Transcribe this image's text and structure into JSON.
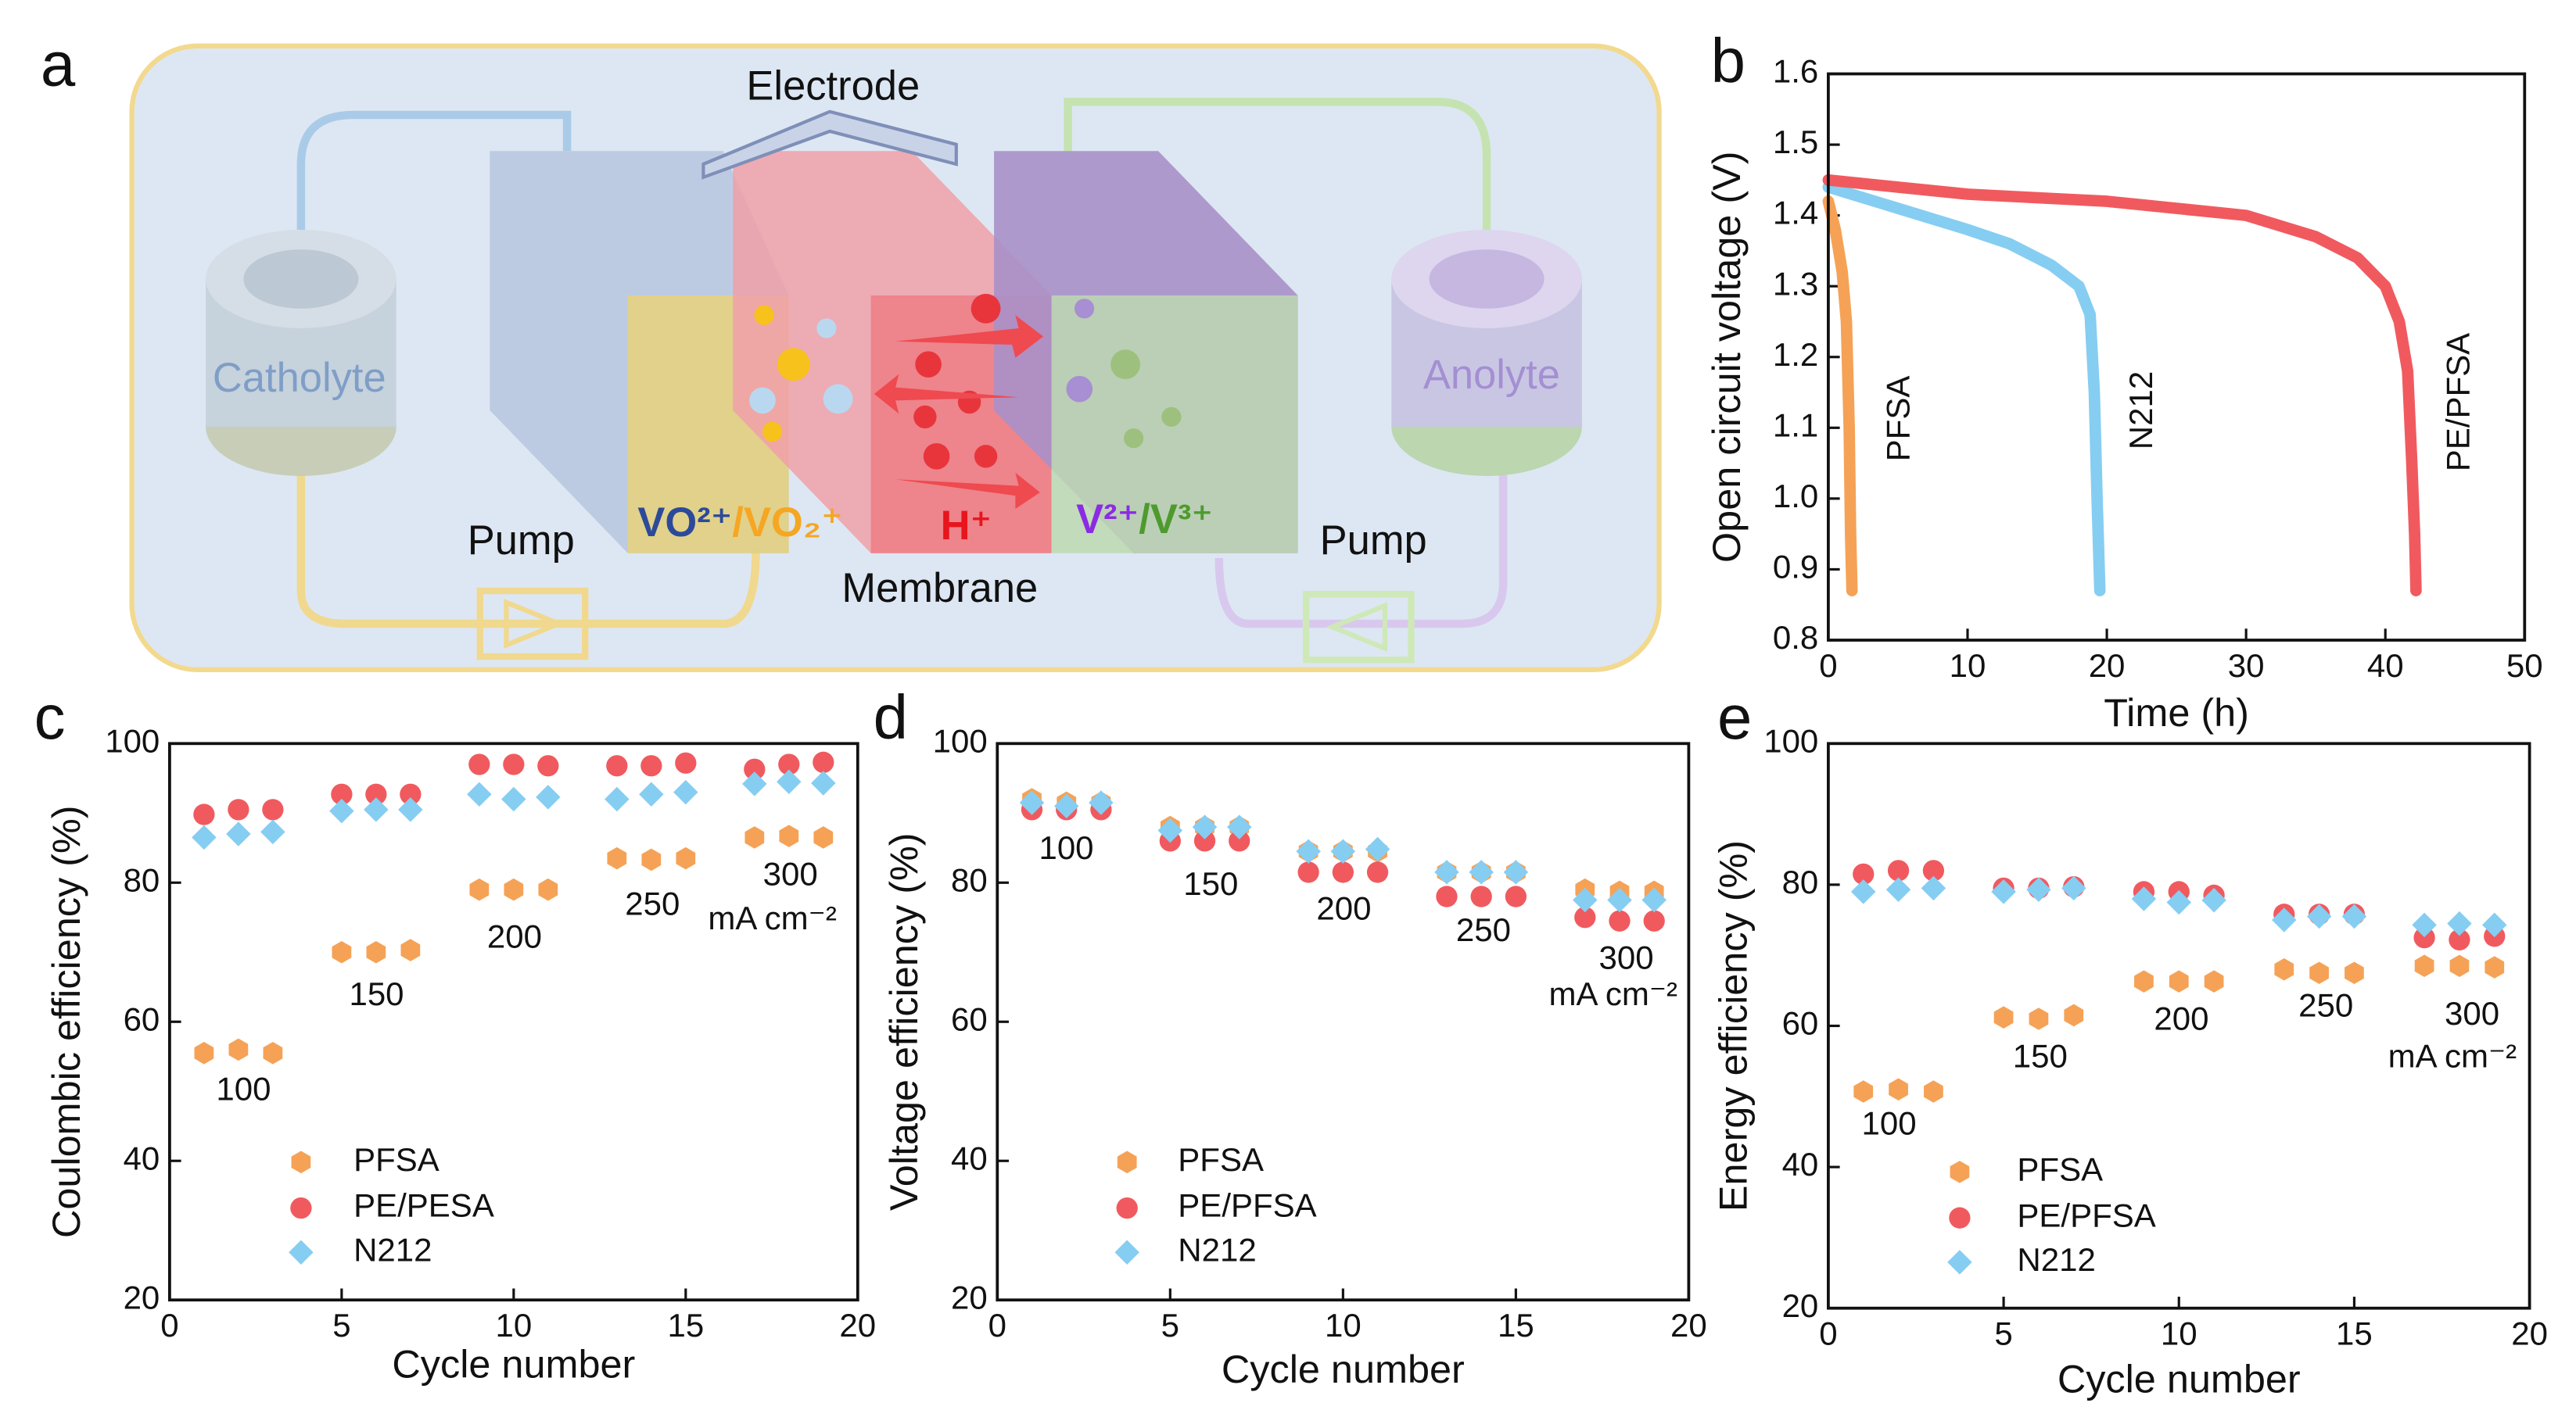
{
  "panels": [
    "a",
    "b",
    "c",
    "d",
    "e"
  ],
  "diagram": {
    "electrode": "Electrode",
    "catholyte": "Catholyte",
    "anolyte": "Anolyte",
    "pump_left": "Pump",
    "pump_right": "Pump",
    "membrane": "Membrane",
    "catholyte_ion_1": "VO²⁺",
    "catholyte_ion_2": "/VO₂⁺",
    "proton": "H⁺",
    "anolyte_ion_1": "V²⁺",
    "anolyte_ion_2": "/V³⁺"
  },
  "chart_data": [
    {
      "type": "line",
      "xlabel": "Time (h)",
      "ylabel": "Open circuit voltage (V)",
      "xlim": [
        0,
        50
      ],
      "xticks": [
        0,
        10,
        20,
        30,
        40,
        50
      ],
      "ylim": [
        0.8,
        1.6
      ],
      "yticks": [
        0.8,
        0.9,
        {
          "value": 1,
          "label": "1.0"
        },
        1.1,
        1.2,
        1.3,
        1.4,
        1.5,
        1.6
      ],
      "series": [
        {
          "name": "PFSA",
          "color": "#f5a256",
          "x": [
            0,
            0.5,
            1,
            1.3,
            1.5,
            1.6,
            1.7
          ],
          "values": [
            1.42,
            1.38,
            1.32,
            1.25,
            1.1,
            0.95,
            0.87
          ]
        },
        {
          "name": "N212",
          "color": "#86cdf2",
          "x": [
            0,
            5,
            10,
            13,
            16,
            18,
            18.8,
            19.1,
            19.3,
            19.5
          ],
          "values": [
            1.44,
            1.41,
            1.38,
            1.36,
            1.33,
            1.3,
            1.26,
            1.15,
            1.0,
            0.87
          ]
        },
        {
          "name": "PE/PFSA",
          "color": "#f05a5f",
          "x": [
            0,
            5,
            10,
            20,
            25,
            30,
            35,
            38,
            40,
            41,
            41.6,
            41.9,
            42.1,
            42.2
          ],
          "values": [
            1.45,
            1.44,
            1.43,
            1.42,
            1.41,
            1.4,
            1.37,
            1.34,
            1.3,
            1.25,
            1.18,
            1.05,
            0.95,
            0.87
          ]
        }
      ]
    },
    {
      "type": "scatter",
      "xlabel": "Cycle number",
      "ylabel": "Coulombic efficiency (%)",
      "xlim": [
        0,
        20
      ],
      "xticks": [
        0,
        5,
        10,
        15,
        20
      ],
      "ylim": [
        20,
        100
      ],
      "yticks": [
        20,
        40,
        60,
        80,
        100
      ],
      "x": [
        1,
        2,
        3,
        5,
        6,
        7,
        9,
        10,
        11,
        13,
        14,
        15,
        17,
        18,
        19
      ],
      "series": [
        {
          "name": "PFSA",
          "color": "#f5a256",
          "marker": "hexagon",
          "values": [
            55.5,
            56,
            55.5,
            70,
            70,
            70.3,
            79,
            79,
            79,
            83.5,
            83.3,
            83.5,
            86.5,
            86.7,
            86.5
          ]
        },
        {
          "name": "PE/PESA",
          "color": "#f05a5f",
          "marker": "circle",
          "values": [
            89.8,
            90.5,
            90.5,
            92.7,
            92.7,
            92.7,
            97,
            97,
            96.8,
            96.8,
            96.8,
            97.2,
            96.3,
            97,
            97.3
          ]
        },
        {
          "name": "N212",
          "color": "#86cdf2",
          "marker": "diamond",
          "values": [
            86.5,
            87,
            87.3,
            90.3,
            90.5,
            90.5,
            92.7,
            92,
            92.3,
            92,
            92.7,
            93,
            94.2,
            94.5,
            94.3
          ]
        }
      ],
      "annotations": [
        "100",
        "150",
        "200",
        "250",
        "300",
        "mA cm⁻²"
      ]
    },
    {
      "type": "scatter",
      "xlabel": "Cycle number",
      "ylabel": "Voltage efficiency (%)",
      "xlim": [
        0,
        20
      ],
      "xticks": [
        0,
        5,
        10,
        15,
        20
      ],
      "ylim": [
        20,
        100
      ],
      "yticks": [
        20,
        40,
        60,
        80,
        100
      ],
      "x": [
        1,
        2,
        3,
        5,
        6,
        7,
        9,
        10,
        11,
        13,
        14,
        15,
        17,
        18,
        19
      ],
      "series": [
        {
          "name": "PFSA",
          "color": "#f5a256",
          "marker": "hexagon",
          "values": [
            92,
            91.5,
            91.5,
            88,
            88,
            88,
            84.5,
            84.5,
            84.5,
            81.5,
            81.5,
            81.5,
            79,
            78.7,
            78.7
          ]
        },
        {
          "name": "PE/PFSA",
          "color": "#f05a5f",
          "marker": "circle",
          "values": [
            90.5,
            90.5,
            90.5,
            86,
            86,
            86,
            81.5,
            81.5,
            81.5,
            78,
            78,
            78,
            75,
            74.5,
            74.5
          ]
        },
        {
          "name": "N212",
          "color": "#86cdf2",
          "marker": "diamond",
          "values": [
            91.5,
            91,
            91.5,
            87.5,
            88,
            88,
            84.5,
            84.5,
            84.8,
            81.5,
            81.5,
            81.5,
            77.5,
            77.5,
            77.5
          ]
        }
      ],
      "annotations": [
        "100",
        "150",
        "200",
        "250",
        "300",
        "mA cm⁻²"
      ]
    },
    {
      "type": "scatter",
      "xlabel": "Cycle number",
      "ylabel": "Energy efficiency (%)",
      "xlim": [
        0,
        20
      ],
      "xticks": [
        0,
        5,
        10,
        15,
        20
      ],
      "ylim": [
        20,
        100
      ],
      "yticks": [
        20,
        40,
        60,
        80,
        100
      ],
      "x": [
        1,
        2,
        3,
        5,
        6,
        7,
        9,
        10,
        11,
        13,
        14,
        15,
        17,
        18,
        19
      ],
      "series": [
        {
          "name": "PFSA",
          "color": "#f5a256",
          "marker": "hexagon",
          "values": [
            50.7,
            51,
            50.7,
            61.2,
            61,
            61.5,
            66.3,
            66.3,
            66.3,
            68,
            67.5,
            67.5,
            68.5,
            68.5,
            68.3
          ]
        },
        {
          "name": "PE/PFSA",
          "color": "#f05a5f",
          "marker": "circle",
          "values": [
            81.5,
            82,
            82,
            79.5,
            79.5,
            79.7,
            79,
            79,
            78.5,
            75.8,
            75.8,
            75.8,
            72.5,
            72.2,
            72.7
          ]
        },
        {
          "name": "N212",
          "color": "#86cdf2",
          "marker": "diamond",
          "values": [
            79,
            79.3,
            79.5,
            79,
            79.3,
            79.5,
            78,
            77.5,
            77.8,
            75,
            75.5,
            75.5,
            74.3,
            74.5,
            74.3
          ]
        }
      ],
      "annotations": [
        "100",
        "150",
        "200",
        "250",
        "300",
        "mA cm⁻²"
      ]
    }
  ]
}
